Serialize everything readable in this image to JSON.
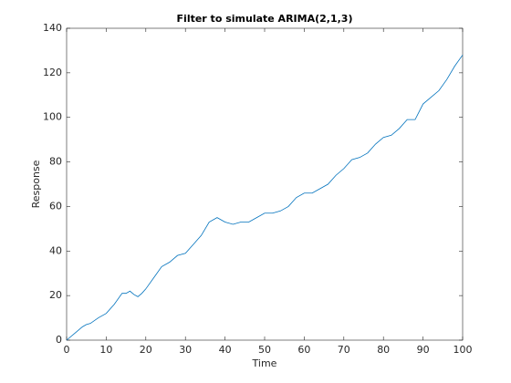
{
  "chart_data": {
    "type": "line",
    "title": "Filter to simulate ARIMA(2,1,3)",
    "xlabel": "Time",
    "ylabel": "Response",
    "x": [
      0,
      2,
      4,
      5,
      6,
      8,
      10,
      12,
      14,
      15,
      16,
      17,
      18,
      19,
      20,
      22,
      24,
      26,
      28,
      30,
      32,
      34,
      36,
      38,
      40,
      42,
      44,
      46,
      48,
      50,
      52,
      54,
      56,
      58,
      60,
      62,
      64,
      66,
      68,
      70,
      72,
      74,
      76,
      78,
      80,
      82,
      84,
      86,
      88,
      90,
      92,
      94,
      96,
      98,
      100
    ],
    "values": [
      0,
      3,
      6,
      7,
      7.5,
      10,
      12,
      16,
      21,
      21,
      22,
      20.5,
      19.5,
      21,
      23,
      28,
      33,
      35,
      38,
      39,
      43,
      47,
      53,
      55,
      53,
      52,
      53,
      53,
      55,
      57,
      57,
      58,
      60,
      64,
      66,
      66,
      68,
      70,
      74,
      77,
      81,
      82,
      84,
      88,
      91,
      92,
      95,
      99,
      99,
      106,
      109,
      112,
      117,
      123,
      128
    ],
    "color": "#0072bd",
    "xlim": [
      0,
      100
    ],
    "xticks": [
      0,
      10,
      20,
      30,
      40,
      50,
      60,
      70,
      80,
      90,
      100
    ],
    "ylim": [
      0,
      140
    ],
    "yticks": [
      0,
      20,
      40,
      60,
      80,
      100,
      120,
      140
    ]
  }
}
